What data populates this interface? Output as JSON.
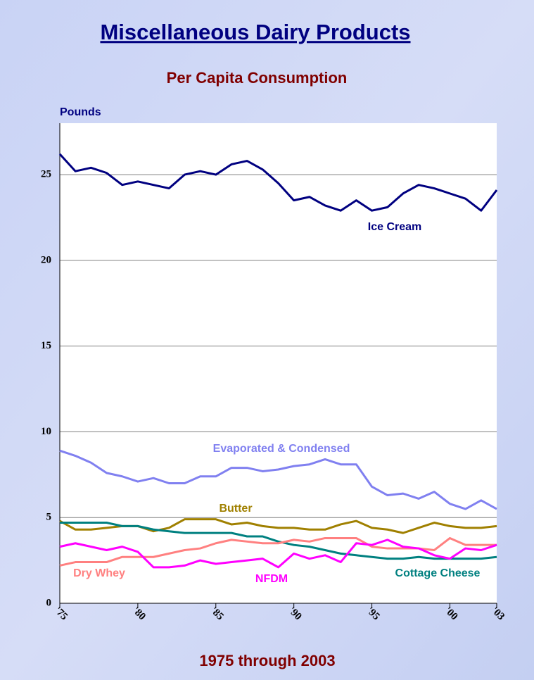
{
  "chart_data": {
    "type": "line",
    "title": "Miscellaneous Dairy Products",
    "subtitle": "Per Capita Consumption",
    "y_label": "Pounds",
    "x_label": "1975 through 2003",
    "x": [
      1975,
      1976,
      1977,
      1978,
      1979,
      1980,
      1981,
      1982,
      1983,
      1984,
      1985,
      1986,
      1987,
      1988,
      1989,
      1990,
      1991,
      1992,
      1993,
      1994,
      1995,
      1996,
      1997,
      1998,
      1999,
      2000,
      2001,
      2002,
      2003
    ],
    "series": [
      {
        "name": "Ice Cream",
        "color": "#000080",
        "values": [
          26.2,
          25.2,
          25.4,
          25.1,
          24.4,
          24.6,
          24.4,
          24.2,
          25.0,
          25.2,
          25.0,
          25.6,
          25.8,
          25.3,
          24.5,
          23.5,
          23.7,
          23.2,
          22.9,
          23.5,
          22.9,
          23.1,
          23.9,
          24.4,
          24.2,
          23.9,
          23.6,
          22.9,
          24.1
        ]
      },
      {
        "name": "Evaporated & Condensed",
        "color": "#8080f0",
        "values": [
          8.9,
          8.6,
          8.2,
          7.6,
          7.4,
          7.1,
          7.3,
          7.0,
          7.0,
          7.4,
          7.4,
          7.9,
          7.9,
          7.7,
          7.8,
          8.0,
          8.1,
          8.4,
          8.1,
          8.1,
          6.8,
          6.3,
          6.4,
          6.1,
          6.5,
          5.8,
          5.5,
          6.0,
          5.5
        ]
      },
      {
        "name": "Butter",
        "color": "#a08000",
        "values": [
          4.8,
          4.3,
          4.3,
          4.4,
          4.5,
          4.5,
          4.2,
          4.4,
          4.9,
          4.9,
          4.9,
          4.6,
          4.7,
          4.5,
          4.4,
          4.4,
          4.3,
          4.3,
          4.6,
          4.8,
          4.4,
          4.3,
          4.1,
          4.4,
          4.7,
          4.5,
          4.4,
          4.4,
          4.5
        ]
      },
      {
        "name": "Cottage Cheese",
        "color": "#008080",
        "values": [
          4.7,
          4.7,
          4.7,
          4.7,
          4.5,
          4.5,
          4.3,
          4.2,
          4.1,
          4.1,
          4.1,
          4.1,
          3.9,
          3.9,
          3.6,
          3.4,
          3.3,
          3.1,
          2.9,
          2.8,
          2.7,
          2.6,
          2.6,
          2.7,
          2.6,
          2.6,
          2.6,
          2.6,
          2.7
        ]
      },
      {
        "name": "Dry Whey",
        "color": "#ff8080",
        "values": [
          2.2,
          2.4,
          2.4,
          2.4,
          2.7,
          2.7,
          2.7,
          2.9,
          3.1,
          3.2,
          3.5,
          3.7,
          3.6,
          3.5,
          3.5,
          3.7,
          3.6,
          3.8,
          3.8,
          3.8,
          3.3,
          3.2,
          3.2,
          3.2,
          3.1,
          3.8,
          3.4,
          3.4,
          3.4
        ]
      },
      {
        "name": "NFDM",
        "color": "#ff00ff",
        "values": [
          3.3,
          3.5,
          3.3,
          3.1,
          3.3,
          3.0,
          2.1,
          2.1,
          2.2,
          2.5,
          2.3,
          2.4,
          2.5,
          2.6,
          2.1,
          2.9,
          2.6,
          2.8,
          2.4,
          3.5,
          3.4,
          3.7,
          3.3,
          3.2,
          2.8,
          2.6,
          3.2,
          3.1,
          3.4
        ]
      }
    ],
    "xlim": [
      1975,
      2003
    ],
    "xticks": [
      {
        "value": 1975,
        "label": "'75"
      },
      {
        "value": 1980,
        "label": "'80"
      },
      {
        "value": 1985,
        "label": "'85"
      },
      {
        "value": 1990,
        "label": "'90"
      },
      {
        "value": 1995,
        "label": "'95"
      },
      {
        "value": 2000,
        "label": "'00"
      },
      {
        "value": 2003,
        "label": "'03"
      }
    ],
    "ylim": [
      0,
      28
    ],
    "yticks": [
      0,
      5,
      10,
      15,
      20,
      25
    ],
    "grid": true
  }
}
